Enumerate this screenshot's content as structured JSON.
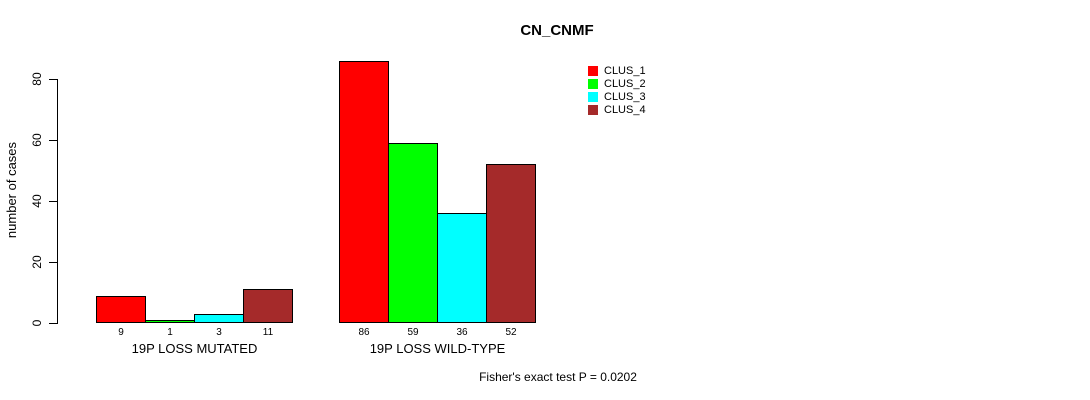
{
  "chart_data": {
    "type": "bar",
    "title": "CN_CNMF",
    "ylabel": "number of cases",
    "xlabel": "",
    "yticks": [
      0,
      20,
      40,
      60,
      80
    ],
    "ylim": [
      0,
      90
    ],
    "grid": false,
    "legend_position": "right",
    "bar_value_labels_shown": true,
    "categories": [
      "19P LOSS MUTATED",
      "19P LOSS WILD-TYPE"
    ],
    "series": [
      {
        "name": "CLUS_1",
        "color": "#FF0000",
        "values": [
          9,
          86
        ]
      },
      {
        "name": "CLUS_2",
        "color": "#00FF00",
        "values": [
          1,
          59
        ]
      },
      {
        "name": "CLUS_3",
        "color": "#00FFFF",
        "values": [
          3,
          36
        ]
      },
      {
        "name": "CLUS_4",
        "color": "#A52A2A",
        "values": [
          11,
          52
        ]
      }
    ],
    "annotation": "Fisher's exact test P = 0.0202"
  }
}
